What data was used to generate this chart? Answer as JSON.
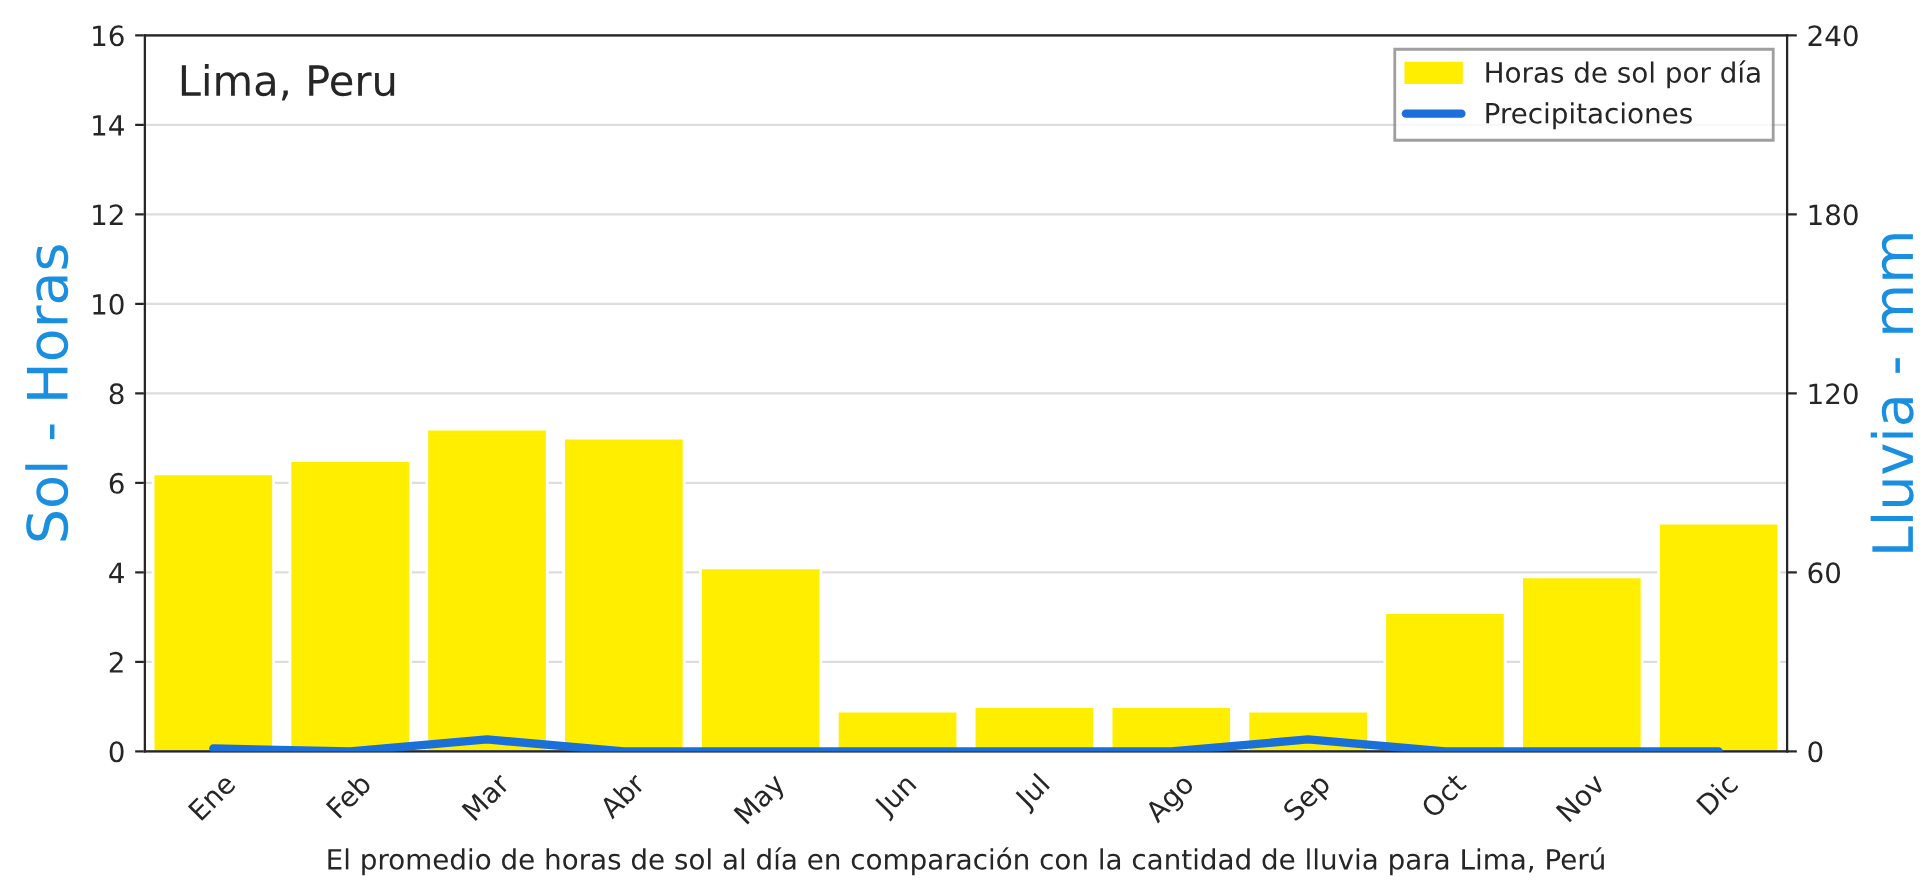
{
  "chart_data": {
    "type": "bar",
    "title": "Lima, Peru",
    "categories": [
      "Ene",
      "Feb",
      "Mar",
      "Abr",
      "May",
      "Jun",
      "Jul",
      "Ago",
      "Sep",
      "Oct",
      "Nov",
      "Dic"
    ],
    "series": [
      {
        "name": "Horas de sol por día",
        "color": "#ffee00",
        "values": [
          6.2,
          6.5,
          7.2,
          7.0,
          4.1,
          0.9,
          1.0,
          1.0,
          0.9,
          3.1,
          3.9,
          5.1
        ]
      },
      {
        "name": "Precipitaciones",
        "type": "line",
        "axis": "y2",
        "color": "#1a6fd8",
        "values": [
          1,
          0,
          4,
          0,
          0,
          0,
          0,
          0,
          4,
          0,
          0,
          0
        ]
      }
    ],
    "ylabel": "Sol - Horas",
    "y2label": "Lluvia - mm",
    "ylim": [
      0,
      16
    ],
    "yticks": [
      0,
      2,
      4,
      6,
      8,
      10,
      12,
      14,
      16
    ],
    "y2lim": [
      0,
      240
    ],
    "y2ticks": [
      0,
      60,
      120,
      180,
      240
    ],
    "grid": "y",
    "legend": "top right",
    "annotations": [
      "El promedio de horas de sol al día en comparación con la cantidad de lluvia para Lima, Perú"
    ]
  }
}
